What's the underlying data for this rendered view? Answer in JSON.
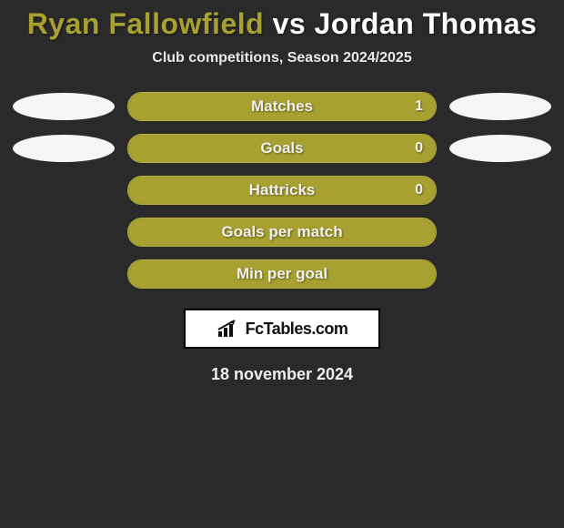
{
  "header": {
    "player1": "Ryan Fallowfield",
    "vs": "vs",
    "player2": "Jordan Thomas",
    "subtitle": "Club competitions, Season 2024/2025"
  },
  "colors": {
    "bar_fill": "#a8a030",
    "bar_border": "#b8b040",
    "bar_bg": "#3a3a3a",
    "ellipse_bg": "#f5f5f5"
  },
  "stats": [
    {
      "label": "Matches",
      "value": "1",
      "fill_pct": 100,
      "show_left_ellipse": true,
      "show_right_ellipse": true,
      "show_value": true
    },
    {
      "label": "Goals",
      "value": "0",
      "fill_pct": 100,
      "show_left_ellipse": true,
      "show_right_ellipse": true,
      "show_value": true
    },
    {
      "label": "Hattricks",
      "value": "0",
      "fill_pct": 100,
      "show_left_ellipse": false,
      "show_right_ellipse": false,
      "show_value": true
    },
    {
      "label": "Goals per match",
      "value": "",
      "fill_pct": 100,
      "show_left_ellipse": false,
      "show_right_ellipse": false,
      "show_value": false
    },
    {
      "label": "Min per goal",
      "value": "",
      "fill_pct": 100,
      "show_left_ellipse": false,
      "show_right_ellipse": false,
      "show_value": false
    }
  ],
  "badge": {
    "text": "FcTables.com",
    "icon": "barchart-arrow"
  },
  "date": "18 november 2024"
}
